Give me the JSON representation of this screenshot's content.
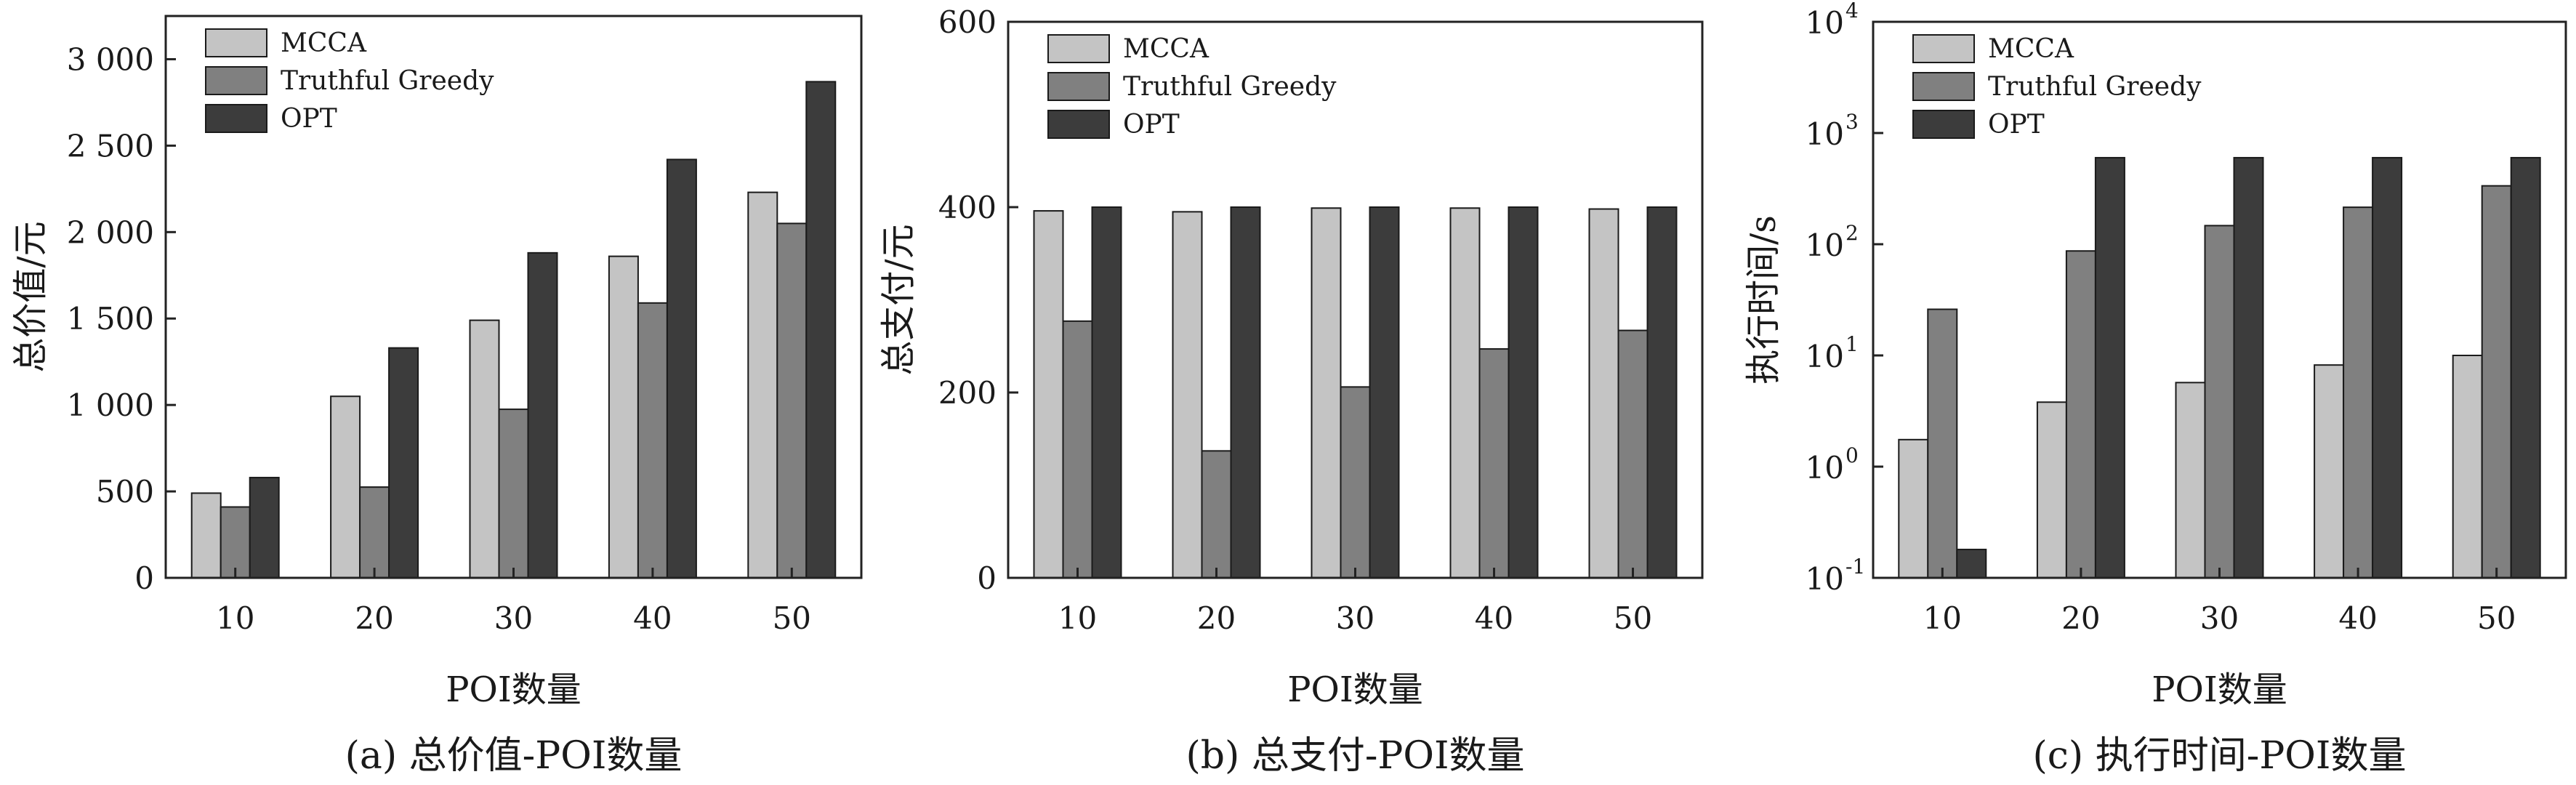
{
  "colors": {
    "MCCA": "#c4c4c4",
    "Truthful Greedy": "#808080",
    "OPT": "#3c3c3c",
    "axis": "#222222"
  },
  "chart_data": [
    {
      "type": "bar",
      "caption": "(a) 总价值-POI数量",
      "xlabel": "POI数量",
      "ylabel": "总价值/元",
      "categories": [
        "10",
        "20",
        "30",
        "40",
        "50"
      ],
      "yticks": [
        0,
        500,
        1000,
        1500,
        2000,
        2500,
        3000
      ],
      "ytick_labels": [
        "0",
        "500",
        "1 000",
        "1 500",
        "2 000",
        "2 500",
        "3 000"
      ],
      "ylim": [
        0,
        3250
      ],
      "yscale": "linear",
      "legend_position": "top-left",
      "series": [
        {
          "name": "MCCA",
          "values": [
            490,
            1050,
            1490,
            1860,
            2230
          ]
        },
        {
          "name": "Truthful Greedy",
          "values": [
            410,
            525,
            975,
            1590,
            2050
          ]
        },
        {
          "name": "OPT",
          "values": [
            580,
            1330,
            1880,
            2420,
            2870
          ]
        }
      ]
    },
    {
      "type": "bar",
      "caption": "(b) 总支付-POI数量",
      "xlabel": "POI数量",
      "ylabel": "总支付/元",
      "categories": [
        "10",
        "20",
        "30",
        "40",
        "50"
      ],
      "yticks": [
        0,
        200,
        400,
        600
      ],
      "ytick_labels": [
        "0",
        "200",
        "400",
        "600"
      ],
      "ylim": [
        0,
        600
      ],
      "yscale": "linear",
      "legend_position": "top-left",
      "series": [
        {
          "name": "MCCA",
          "values": [
            396,
            395,
            399,
            399,
            398
          ]
        },
        {
          "name": "Truthful Greedy",
          "values": [
            277,
            137,
            206,
            247,
            267
          ]
        },
        {
          "name": "OPT",
          "values": [
            400,
            400,
            400,
            400,
            400
          ]
        }
      ]
    },
    {
      "type": "bar",
      "caption": "(c) 执行时间-POI数量",
      "xlabel": "POI数量",
      "ylabel": "执行时间/s",
      "categories": [
        "10",
        "20",
        "30",
        "40",
        "50"
      ],
      "yticks": [
        0.1,
        1,
        10,
        100,
        1000,
        10000
      ],
      "ytick_base": [
        "10",
        "10",
        "10",
        "10",
        "10",
        "10"
      ],
      "ytick_exp": [
        "-1",
        "0",
        "1",
        "2",
        "3",
        "4"
      ],
      "ylim": [
        0.1,
        10000
      ],
      "yscale": "log",
      "legend_position": "top-left",
      "series": [
        {
          "name": "MCCA",
          "values": [
            1.75,
            3.8,
            5.7,
            8.2,
            10
          ]
        },
        {
          "name": "Truthful Greedy",
          "values": [
            26,
            87,
            147,
            215,
            335
          ]
        },
        {
          "name": "OPT",
          "values": [
            0.18,
            600,
            600,
            600,
            600
          ]
        }
      ]
    }
  ]
}
